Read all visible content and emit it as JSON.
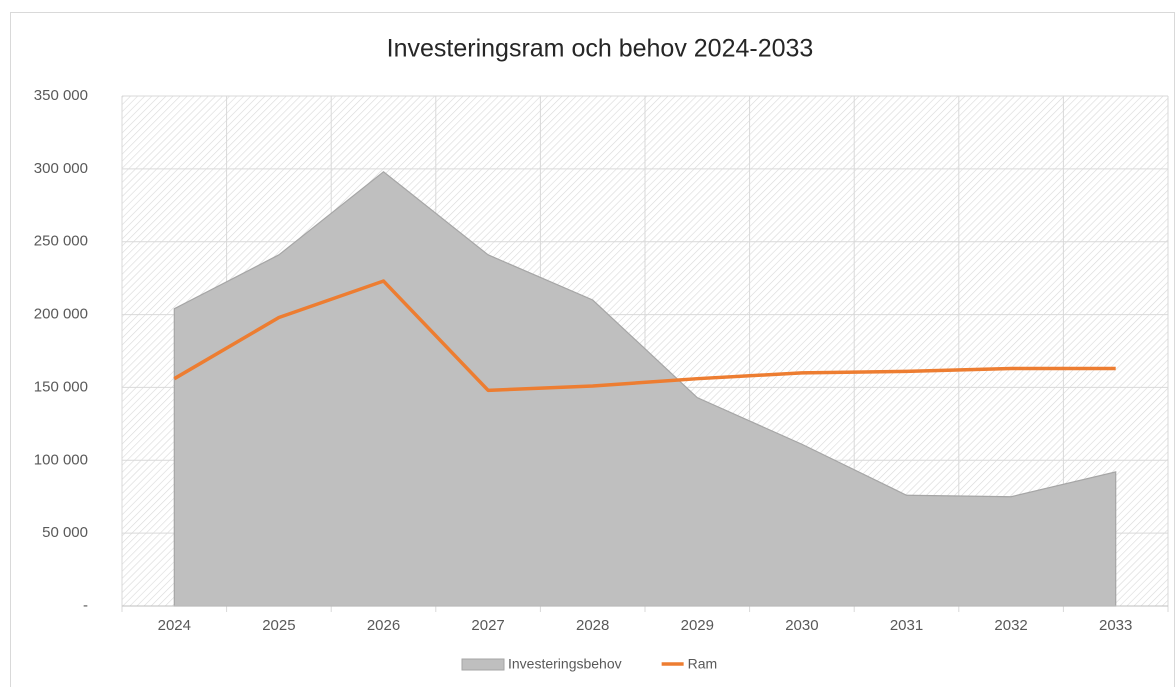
{
  "chart_data": {
    "type": "area_line",
    "title": "Investeringsram och behov  2024-2033",
    "categories": [
      "2024",
      "2025",
      "2026",
      "2027",
      "2028",
      "2029",
      "2030",
      "2031",
      "2032",
      "2033"
    ],
    "series": [
      {
        "name": "Investeringsbehov",
        "type": "area",
        "color": "#bfbfbf",
        "values": [
          204000,
          241000,
          298000,
          241000,
          210000,
          143000,
          111000,
          76000,
          75000,
          92000
        ]
      },
      {
        "name": "Ram",
        "type": "line",
        "color": "#ed7d31",
        "values": [
          156000,
          198000,
          223000,
          148000,
          151000,
          156000,
          160000,
          161000,
          163000,
          163000
        ]
      }
    ],
    "ylim": [
      0,
      350000
    ],
    "yticks": [
      {
        "value": 0,
        "label": "-"
      },
      {
        "value": 50000,
        "label": "50 000"
      },
      {
        "value": 100000,
        "label": "100 000"
      },
      {
        "value": 150000,
        "label": "150 000"
      },
      {
        "value": 200000,
        "label": "200 000"
      },
      {
        "value": 250000,
        "label": "250 000"
      },
      {
        "value": 300000,
        "label": "300 000"
      },
      {
        "value": 350000,
        "label": "350 000"
      }
    ],
    "grid": true,
    "legend": "bottom"
  }
}
